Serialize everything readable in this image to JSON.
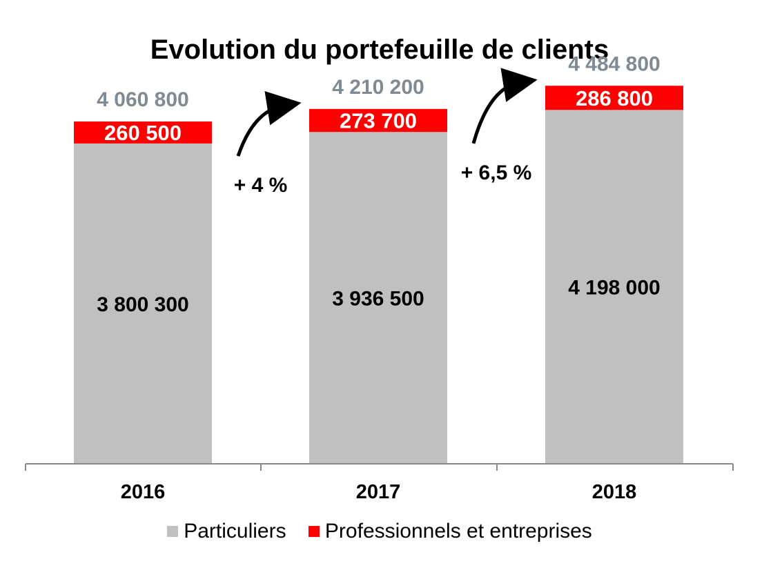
{
  "chart_data": {
    "type": "bar",
    "stacked": true,
    "title": "Evolution du portefeuille de clients",
    "xlabel": "",
    "ylabel": "",
    "grid": false,
    "legend_position": "bottom",
    "ylim": [
      0,
      4600000
    ],
    "categories": [
      "2016",
      "2017",
      "2018"
    ],
    "series": [
      {
        "name": "Particuliers",
        "color": "#c0c0c0",
        "values": [
          3800300,
          3936500,
          4198000
        ],
        "labels": [
          "3 800 300",
          "3 936 500",
          "4 198 000"
        ]
      },
      {
        "name": "Professionnels et entreprises",
        "color": "#ff0000",
        "values": [
          260500,
          273700,
          286800
        ],
        "labels": [
          "260 500",
          "273 700",
          "286 800"
        ]
      }
    ],
    "totals": [
      4060800,
      4210200,
      4484800
    ],
    "total_labels": [
      "4 060 800",
      "4 210 200",
      "4 484 800"
    ],
    "annotations": [
      {
        "text": "+ 4 %",
        "between": [
          "2016",
          "2017"
        ]
      },
      {
        "text": "+ 6,5 %",
        "between": [
          "2017",
          "2018"
        ]
      }
    ]
  },
  "colors": {
    "total_label": "#7f8a93",
    "axis": "#888888",
    "text": "#000000"
  }
}
